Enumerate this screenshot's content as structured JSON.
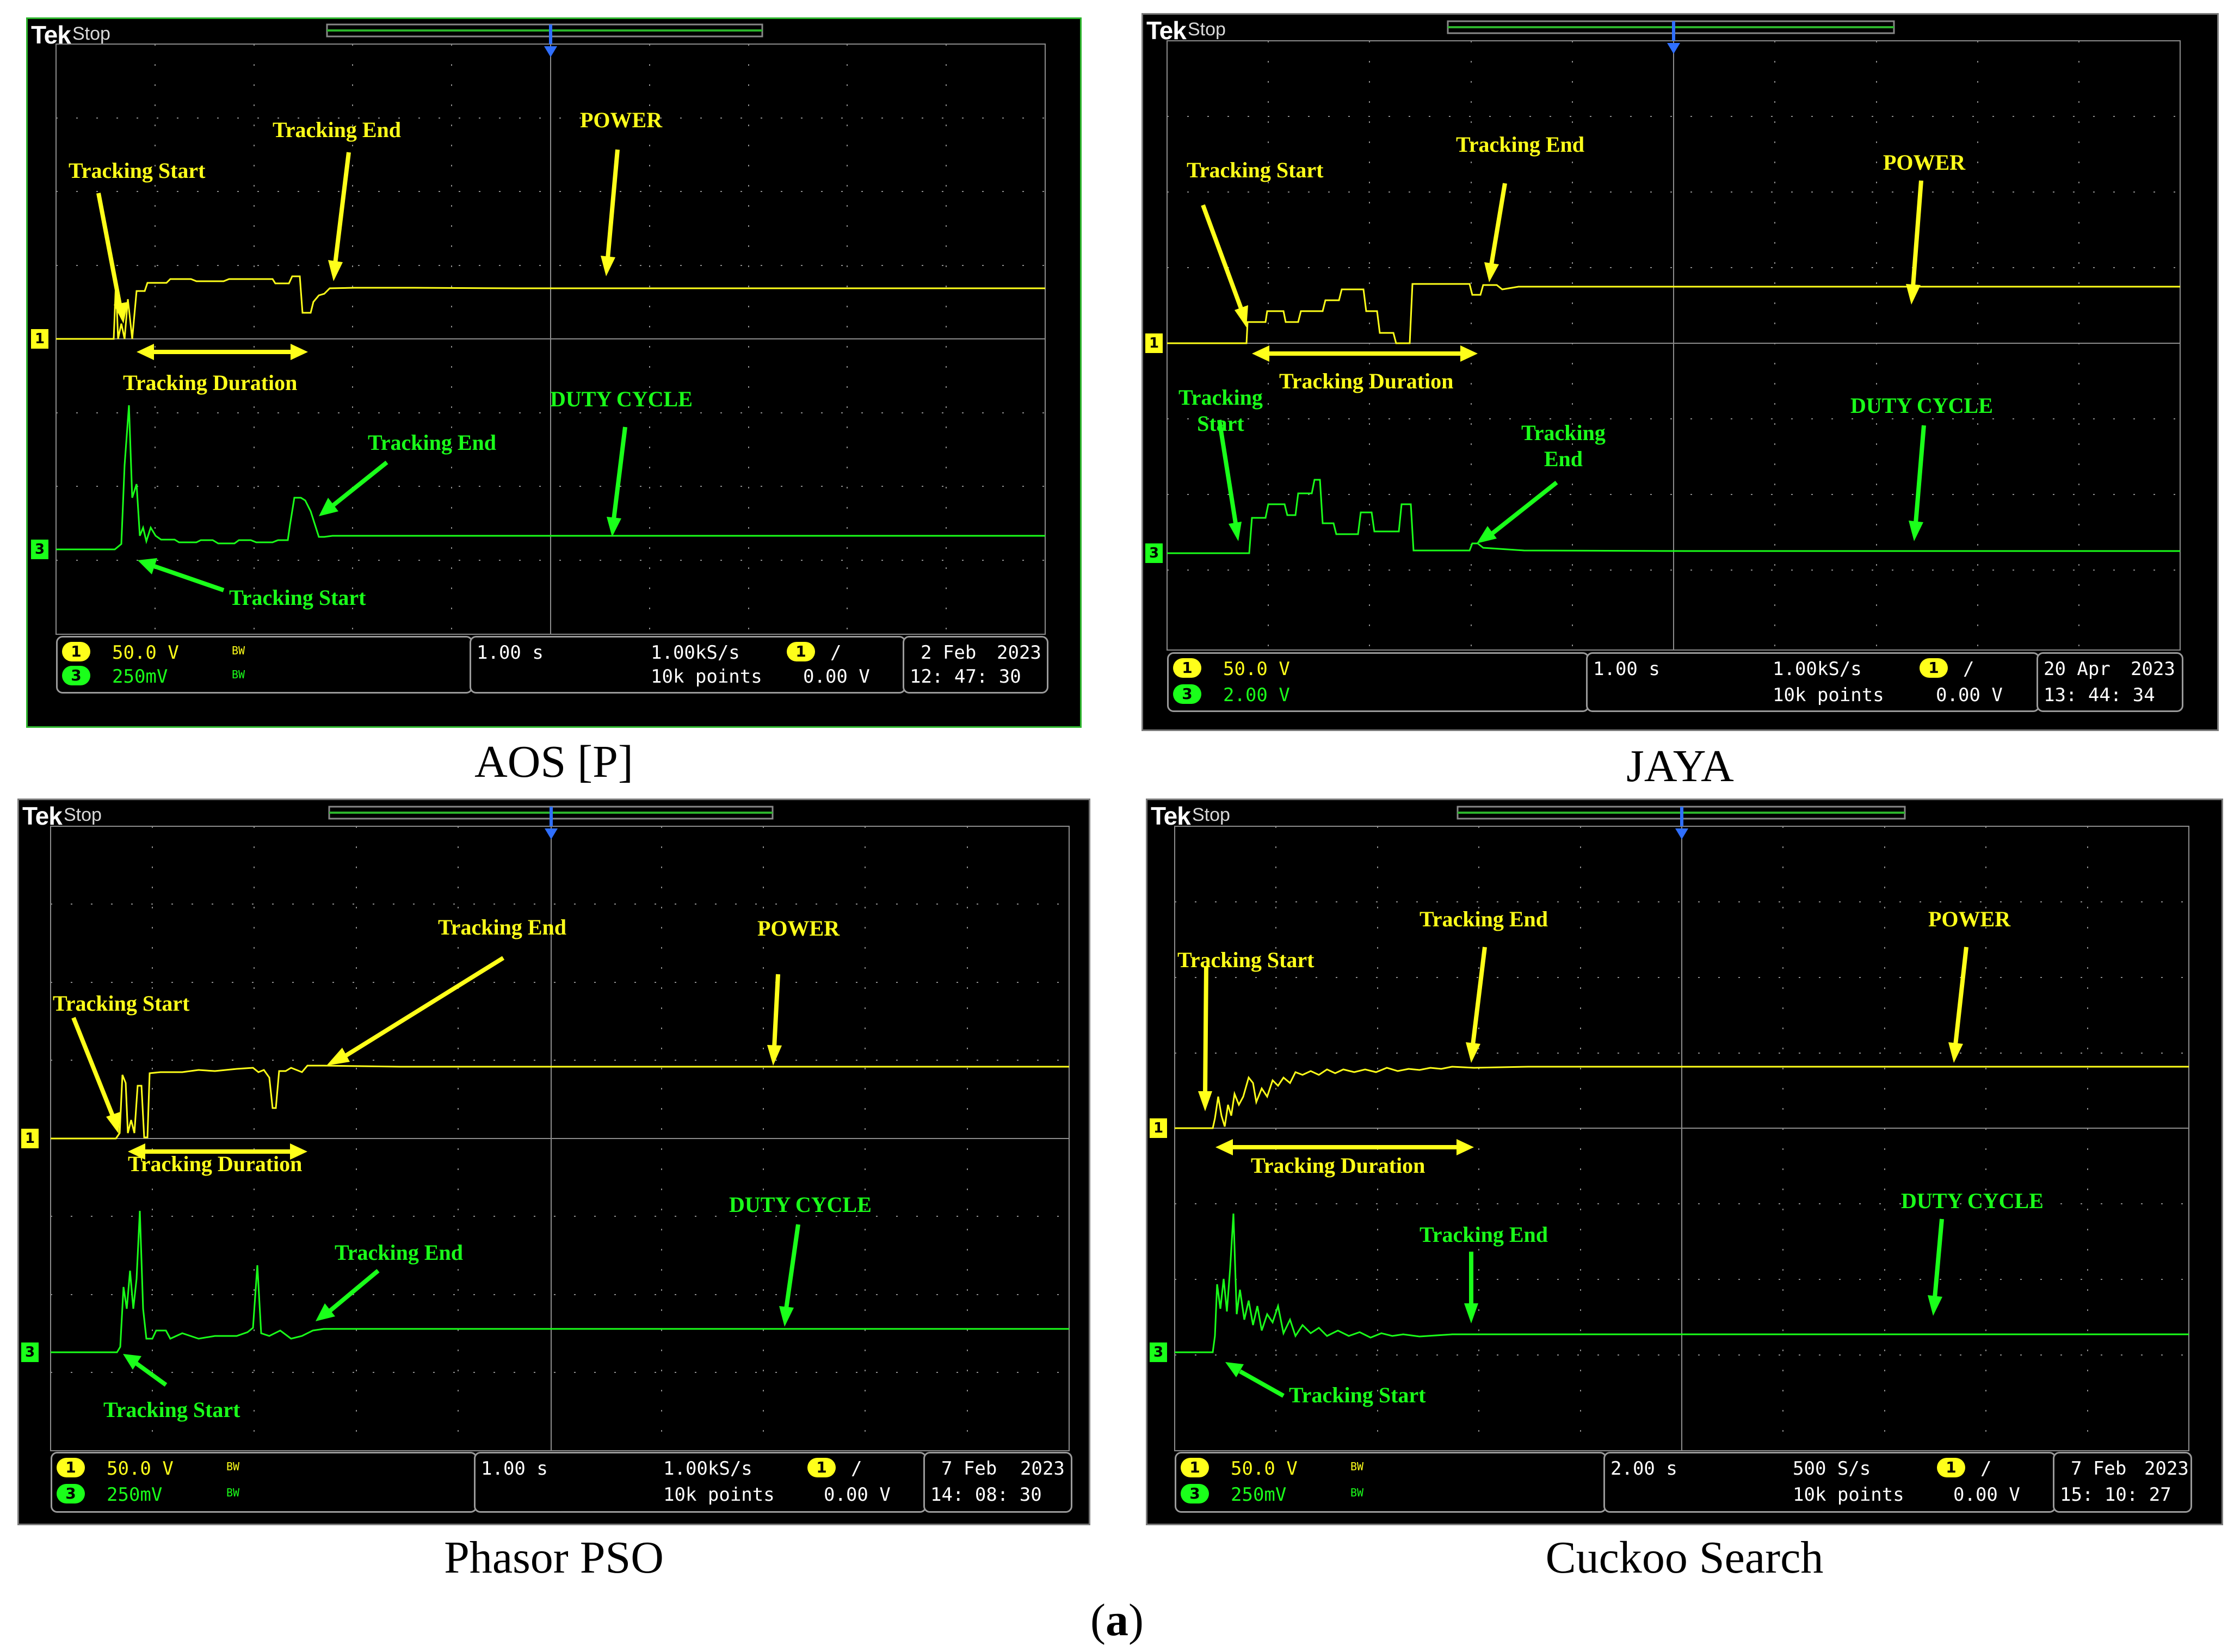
{
  "figure_label": {
    "prefix": "(",
    "letter": "a",
    "suffix": ")"
  },
  "brand": "Tek",
  "status": "Stop",
  "colors": {
    "ch1": "#ffff1a",
    "ch3": "#1aff1a",
    "grid": "#8c8c8c",
    "trigger": "#2f6fff"
  },
  "scopes": [
    {
      "caption": "AOS [P]",
      "ch1_scale": "50.0 V",
      "ch3_scale": "250mV",
      "bw": "BW",
      "timebase": "1.00 s",
      "sample_rate": "1.00kS/s",
      "record_length": "10k points",
      "trigger_channel": "1",
      "trigger_slope": "/",
      "trigger_level": "0.00 V",
      "date": "2 Feb",
      "year": "2023",
      "time": "12: 47: 30",
      "labels": {
        "power_start": "Tracking Start",
        "power_end": "Tracking End",
        "power": "POWER",
        "duration": "Tracking Duration",
        "duty_end": "Tracking End",
        "duty_cycle": "DUTY CYCLE",
        "duty_start": "Tracking Start"
      }
    },
    {
      "caption": "JAYA",
      "ch1_scale": "50.0 V",
      "ch3_scale": "2.00 V",
      "bw": "",
      "timebase": "1.00 s",
      "sample_rate": "1.00kS/s",
      "record_length": "10k points",
      "trigger_channel": "1",
      "trigger_slope": "/",
      "trigger_level": "0.00 V",
      "date": "20 Apr",
      "year": "2023",
      "time": "13: 44: 34",
      "labels": {
        "power_start": "Tracking Start",
        "power_end": "Tracking End",
        "power": "POWER",
        "duration": "Tracking Duration",
        "duty_start_1": "Tracking",
        "duty_start_2": "Start",
        "duty_end_1": "Tracking",
        "duty_end_2": "End",
        "duty_cycle": "DUTY CYCLE"
      }
    },
    {
      "caption": "Phasor PSO",
      "ch1_scale": "50.0 V",
      "ch3_scale": "250mV",
      "bw": "BW",
      "timebase": "1.00 s",
      "sample_rate": "1.00kS/s",
      "record_length": "10k points",
      "trigger_channel": "1",
      "trigger_slope": "/",
      "trigger_level": "0.00 V",
      "date": "7 Feb",
      "year": "2023",
      "time": "14: 08: 30",
      "labels": {
        "power_start": "Tracking Start",
        "power_end": "Tracking End",
        "power": "POWER",
        "duration": "Tracking Duration",
        "duty_end": "Tracking End",
        "duty_cycle": "DUTY CYCLE",
        "duty_start": "Tracking Start"
      }
    },
    {
      "caption": "Cuckoo Search",
      "ch1_scale": "50.0 V",
      "ch3_scale": "250mV",
      "bw": "BW",
      "timebase": "2.00 s",
      "sample_rate": "500 S/s",
      "record_length": "10k points",
      "trigger_channel": "1",
      "trigger_slope": "/",
      "trigger_level": "0.00 V",
      "date": "7 Feb",
      "year": "2023",
      "time": "15: 10: 27",
      "labels": {
        "power_start": "Tracking Start",
        "power_end": "Tracking End",
        "power": "POWER",
        "duration": "Tracking Duration",
        "duty_end": "Tracking End",
        "duty_cycle": "DUTY CYCLE",
        "duty_start": "Tracking Start"
      }
    }
  ]
}
